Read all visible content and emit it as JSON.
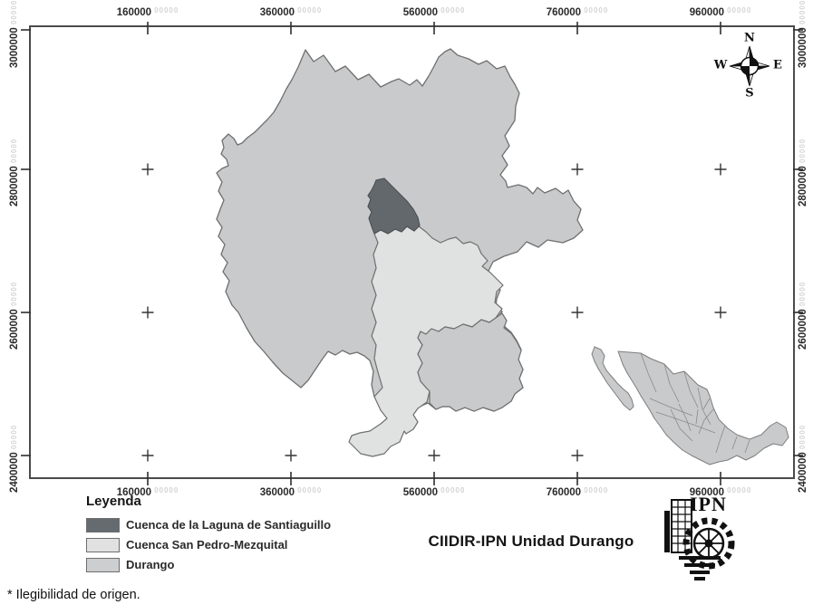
{
  "axis": {
    "x_labels": [
      "160000",
      "360000",
      "560000",
      "760000",
      "960000"
    ],
    "y_labels": [
      "3000000",
      "2800000",
      "2600000",
      "2400000"
    ],
    "ghost_suffix": "00000"
  },
  "compass": {
    "n": "N",
    "s": "S",
    "e": "E",
    "w": "W"
  },
  "legend": {
    "title": "Leyenda",
    "items": [
      {
        "label": "Cuenca de la Laguna de Santiaguillo",
        "color": "#666b6f"
      },
      {
        "label": "Cuenca San Pedro-Mezquital",
        "color": "#e1e1e1"
      },
      {
        "label": "Durango",
        "color": "#cdcecf"
      }
    ]
  },
  "credit": "CIIDIR-IPN Unidad Durango",
  "logo_text": "IPN",
  "footnote": "* Ilegibilidad de origen.",
  "colors": {
    "durango": "#c9cacb",
    "mezquital": "#e0e1e1",
    "santiaguillo": "#63686c",
    "state_border": "#6f6f6f",
    "inset_fill": "#c9cacb",
    "inset_border": "#7d7d7d",
    "frame": "#4b4b4b"
  }
}
